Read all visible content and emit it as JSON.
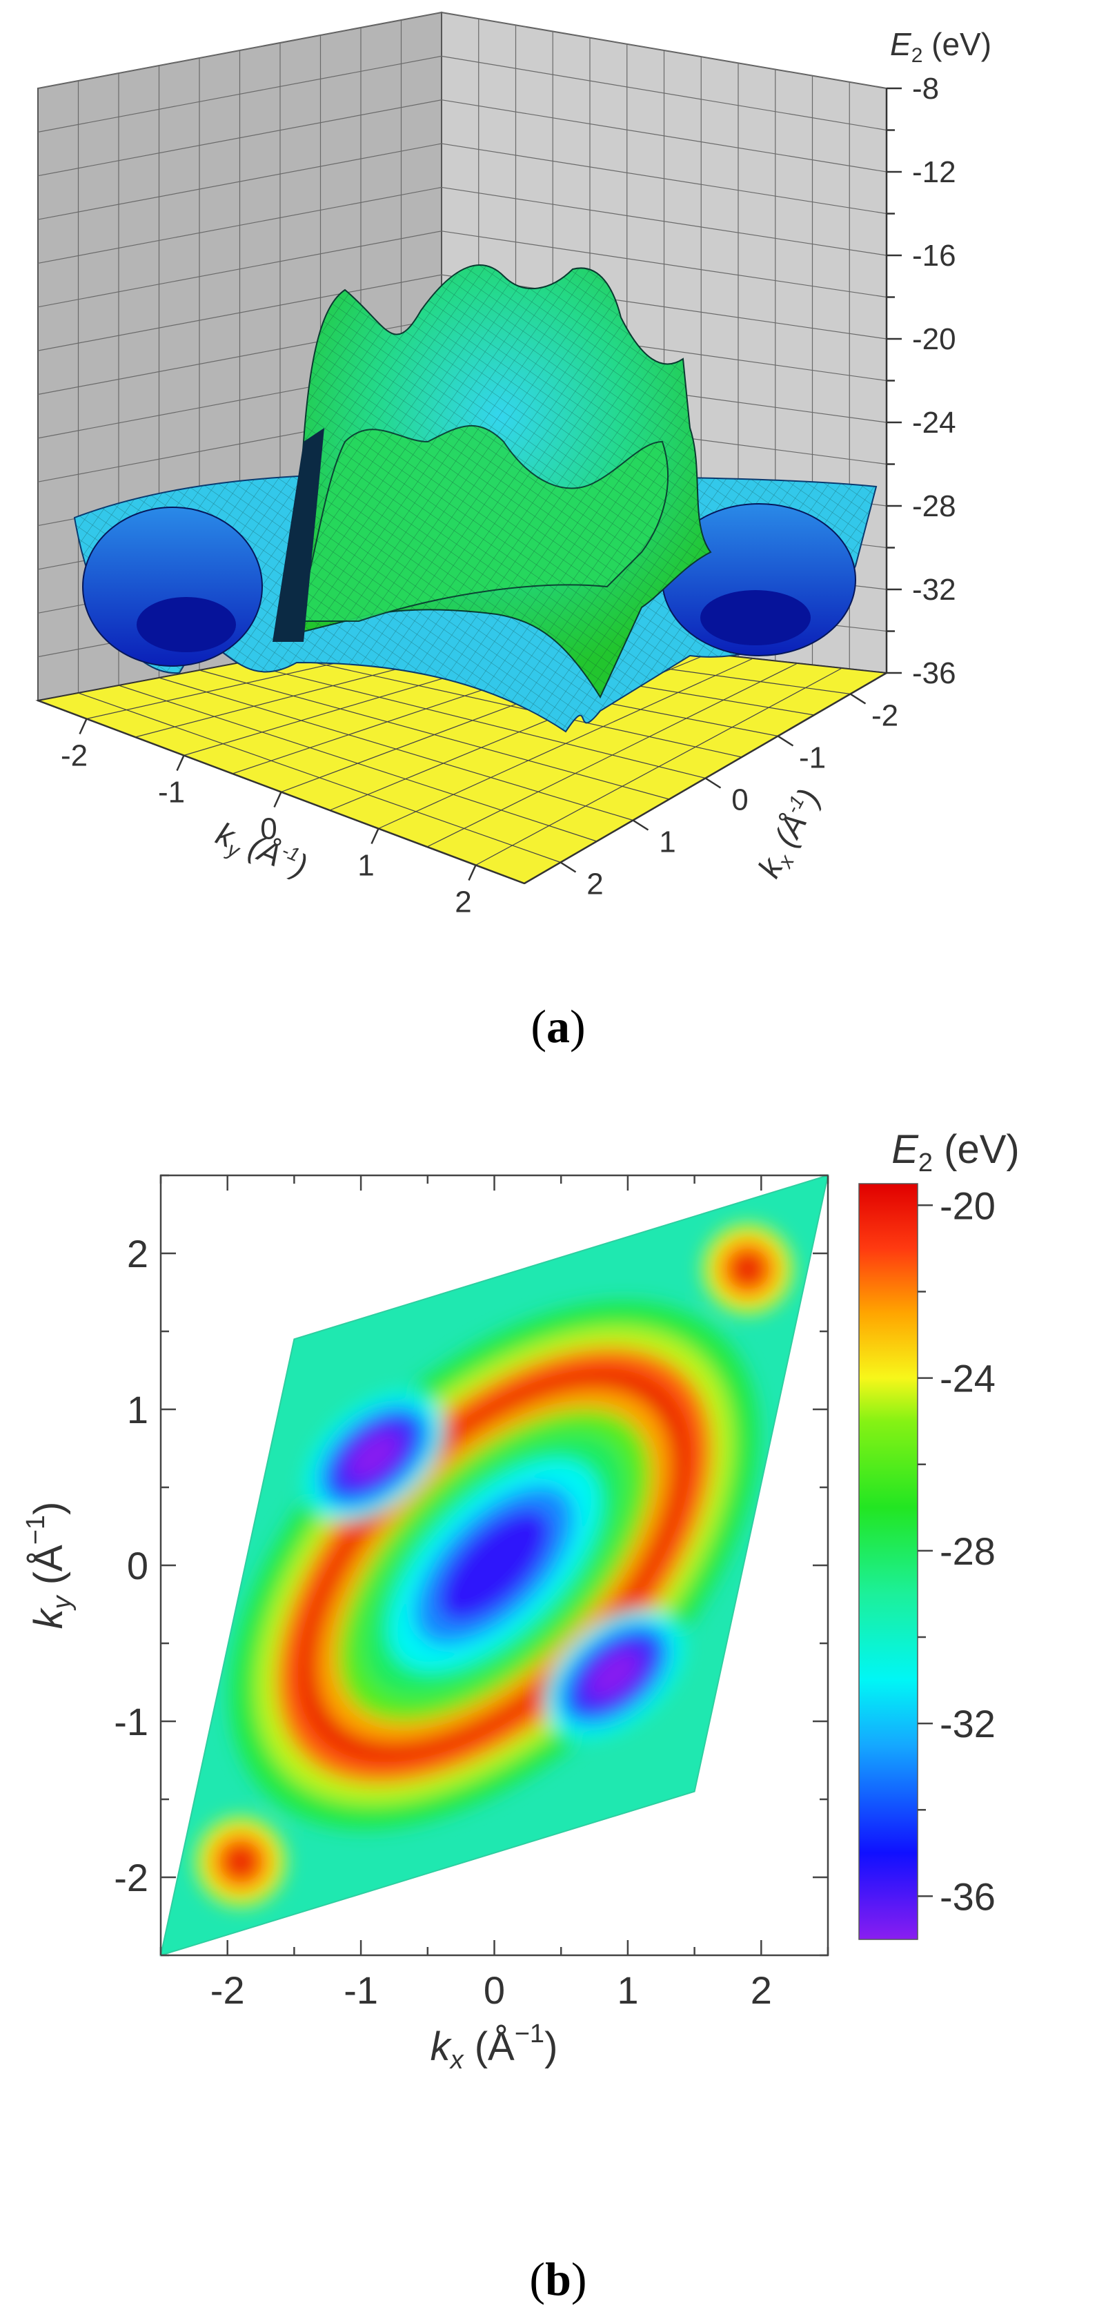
{
  "figure": {
    "panel_a_label": "a",
    "panel_b_label": "b"
  },
  "chart_data": [
    {
      "type": "surface",
      "panel": "a",
      "zlabel": "E",
      "zlabel_sub": "2",
      "zlabel_unit": " (eV)",
      "zticks": [
        "-8",
        "-12",
        "-16",
        "-20",
        "-24",
        "-28",
        "-32",
        "-36"
      ],
      "zlim": [
        -36,
        -8
      ],
      "xlabel": "k",
      "xlabel_sub": "x",
      "xlabel_unit": " (Å",
      "xlabel_exp": "-1",
      "xlabel_close": ")",
      "ylabel": "k",
      "ylabel_sub": "y",
      "ylabel_unit": " (Å",
      "ylabel_exp": "-1",
      "ylabel_close": ")",
      "xticks": [
        "-2",
        "-1",
        "0",
        "1",
        "2"
      ],
      "yticks": [
        "-2",
        "-1",
        "0",
        "1",
        "2"
      ],
      "xlim": [
        -2.5,
        2.5
      ],
      "ylim": [
        -2.5,
        2.5
      ],
      "floor_color": "#f5f232",
      "wall_color": "#c8c8c8",
      "surface_colors": [
        "#0a1fd0",
        "#1f73e8",
        "#33d6ee",
        "#22d37a",
        "#2ee83a"
      ]
    },
    {
      "type": "heatmap",
      "panel": "b",
      "xlabel": "k",
      "xlabel_sub": "x",
      "xlabel_unit": " (Å",
      "xlabel_exp": "−1",
      "xlabel_close": ")",
      "ylabel": "k",
      "ylabel_sub": "y",
      "ylabel_unit": " (Å",
      "ylabel_exp": "−1",
      "ylabel_close": ")",
      "xticks": [
        -2,
        -1,
        0,
        1,
        2
      ],
      "yticks": [
        -2,
        -1,
        0,
        1,
        2
      ],
      "xlim": [
        -2.5,
        2.5
      ],
      "ylim": [
        -2.5,
        2.5
      ],
      "domain": {
        "shape": "parallelogram",
        "vertices": [
          [
            -2.5,
            -2.5
          ],
          [
            -1.5,
            1.45
          ],
          [
            2.5,
            2.5
          ],
          [
            1.5,
            -1.45
          ]
        ]
      },
      "colorbar": {
        "title": "E",
        "title_sub": "2",
        "title_unit": " (eV)",
        "ticks": [
          -20,
          -24,
          -28,
          -32,
          -36
        ],
        "range": [
          -37,
          -19.5
        ],
        "stops": [
          {
            "v": -37,
            "c": "#8a1ef0"
          },
          {
            "v": -35,
            "c": "#1010ff"
          },
          {
            "v": -32.5,
            "c": "#15a8ff"
          },
          {
            "v": -31,
            "c": "#00f6f6"
          },
          {
            "v": -29,
            "c": "#1cf09a"
          },
          {
            "v": -27,
            "c": "#22e622"
          },
          {
            "v": -25,
            "c": "#86f214"
          },
          {
            "v": -24,
            "c": "#f7f71a"
          },
          {
            "v": -22.5,
            "c": "#ffa500"
          },
          {
            "v": -21,
            "c": "#ff3a10"
          },
          {
            "v": -19.5,
            "c": "#e00000"
          }
        ]
      },
      "features": [
        {
          "kind": "central-minimum",
          "center": [
            0,
            0
          ],
          "value": -36
        },
        {
          "kind": "corner-minimum",
          "center": [
            -0.9,
            0.7
          ],
          "value": -37
        },
        {
          "kind": "corner-minimum",
          "center": [
            0.9,
            -0.7
          ],
          "value": -37
        },
        {
          "kind": "ring-maximum",
          "value": -20
        },
        {
          "kind": "corner-maximum",
          "center": [
            1.9,
            1.9
          ],
          "value": -20
        },
        {
          "kind": "corner-maximum",
          "center": [
            -1.9,
            -1.9
          ],
          "value": -20
        }
      ]
    }
  ]
}
